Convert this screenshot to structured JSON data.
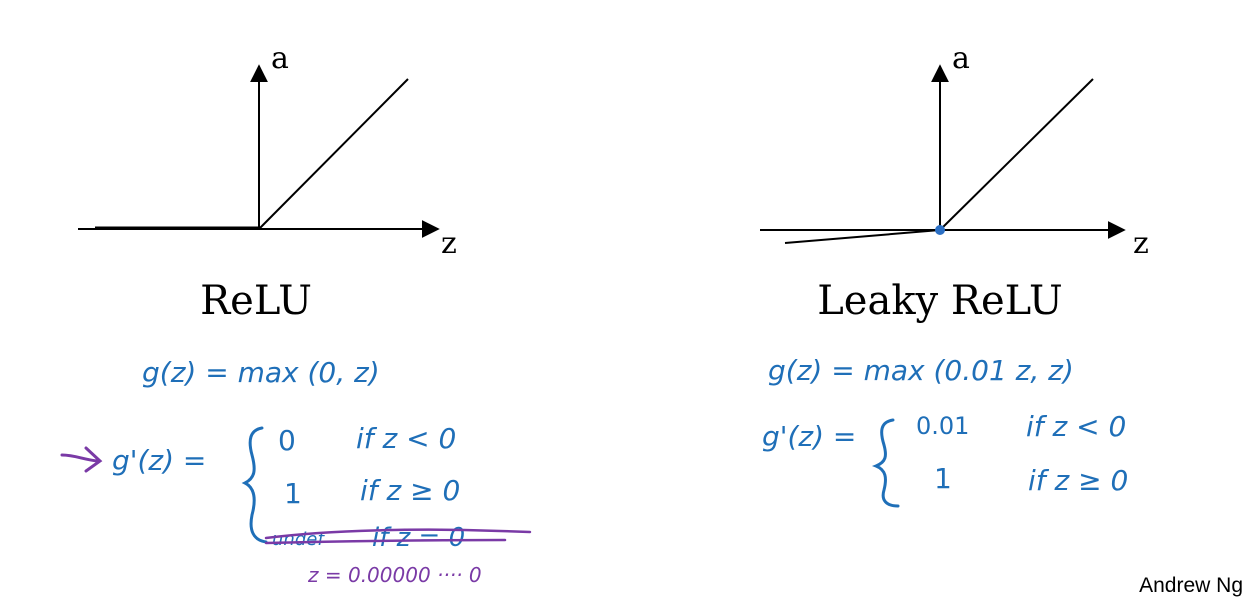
{
  "relu": {
    "axis_y_label": "a",
    "axis_x_label": "z",
    "title": "ReLU",
    "function": "g(z) = max (0, z)",
    "derivative_lhs": "g'(z) =",
    "case1_value": "0",
    "case1_condition": "if z < 0",
    "case2_value": "1",
    "case2_condition": "if z ≥ 0",
    "case3_value": "undef",
    "case3_condition": "if z = 0",
    "note": "z = 0.00000 ···· 0"
  },
  "leaky_relu": {
    "axis_y_label": "a",
    "axis_x_label": "z",
    "title": "Leaky ReLU",
    "function": "g(z) = max (0.01 z, z)",
    "derivative_lhs": "g'(z) =",
    "case1_value": "0.01",
    "case1_condition": "if z < 0",
    "case2_value": "1",
    "case2_condition": "if z ≥ 0"
  },
  "author": "Andrew Ng",
  "colors": {
    "ink": "#000000",
    "handwriting_blue": "#1f6fb8",
    "annotation_purple": "#7a3aa6",
    "point_blue": "#2b6fc4"
  }
}
